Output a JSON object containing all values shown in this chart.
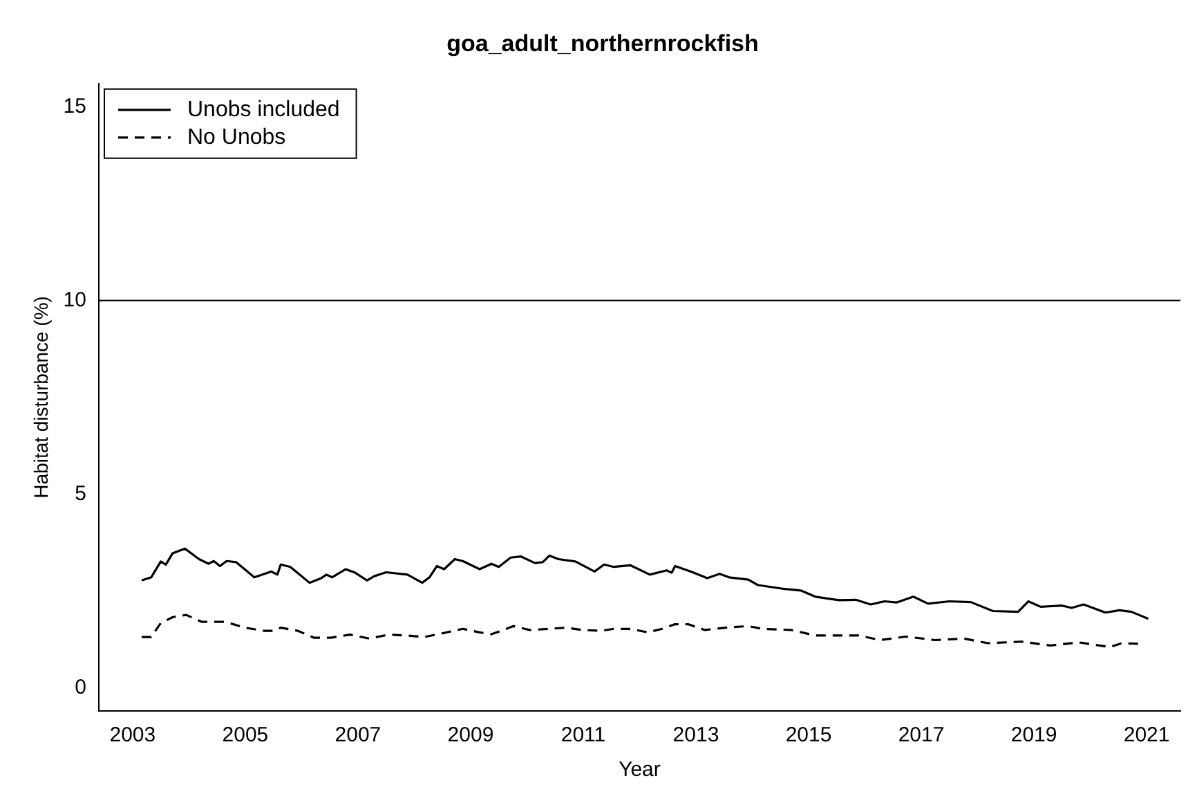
{
  "chart_data": {
    "type": "line",
    "title": "goa_adult_northernrockfish",
    "xlabel": "Year",
    "ylabel": "Habitat disturbance (%)",
    "xlim": [
      2002.4,
      2021.6
    ],
    "xticks": [
      2003,
      2005,
      2007,
      2009,
      2011,
      2013,
      2015,
      2017,
      2019,
      2021
    ],
    "ylim": [
      -0.6,
      15.6
    ],
    "yticks": [
      0,
      5,
      10,
      15
    ],
    "ref_lines": [
      {
        "axis": "y",
        "value": 10,
        "color": "#000000"
      }
    ],
    "legend": "top left",
    "marker": "none",
    "grid": false,
    "series": [
      {
        "name": "Unobs included",
        "color": "#000000",
        "line_style": "solid",
        "x": [
          2003.16,
          2003.33,
          2003.5,
          2003.59,
          2003.71,
          2003.93,
          2004.18,
          2004.35,
          2004.44,
          2004.55,
          2004.67,
          2004.84,
          2005.16,
          2005.46,
          2005.57,
          2005.63,
          2005.8,
          2006.14,
          2006.35,
          2006.44,
          2006.54,
          2006.78,
          2006.95,
          2007.16,
          2007.29,
          2007.5,
          2007.88,
          2008.14,
          2008.27,
          2008.4,
          2008.53,
          2008.72,
          2008.86,
          2009.16,
          2009.37,
          2009.5,
          2009.71,
          2009.89,
          2010.14,
          2010.28,
          2010.4,
          2010.56,
          2010.86,
          2011.2,
          2011.37,
          2011.54,
          2011.84,
          2012.18,
          2012.48,
          2012.57,
          2012.63,
          2012.91,
          2013.2,
          2013.42,
          2013.59,
          2013.93,
          2014.1,
          2014.52,
          2014.86,
          2015.12,
          2015.54,
          2015.84,
          2016.1,
          2016.35,
          2016.56,
          2016.86,
          2017.12,
          2017.5,
          2017.88,
          2018.27,
          2018.72,
          2018.9,
          2019.12,
          2019.5,
          2019.67,
          2019.88,
          2020.27,
          2020.52,
          2020.73,
          2021.03
        ],
        "values": [
          2.77,
          2.85,
          3.26,
          3.18,
          3.47,
          3.59,
          3.32,
          3.2,
          3.27,
          3.14,
          3.27,
          3.24,
          2.85,
          3.0,
          2.92,
          3.18,
          3.12,
          2.71,
          2.83,
          2.92,
          2.85,
          3.06,
          2.97,
          2.77,
          2.88,
          2.98,
          2.92,
          2.71,
          2.85,
          3.14,
          3.06,
          3.32,
          3.27,
          3.06,
          3.2,
          3.12,
          3.36,
          3.39,
          3.22,
          3.24,
          3.41,
          3.32,
          3.26,
          3.0,
          3.18,
          3.12,
          3.16,
          2.92,
          3.03,
          2.97,
          3.14,
          3.0,
          2.83,
          2.94,
          2.85,
          2.79,
          2.65,
          2.56,
          2.51,
          2.35,
          2.26,
          2.27,
          2.15,
          2.23,
          2.2,
          2.35,
          2.17,
          2.23,
          2.21,
          1.98,
          1.96,
          2.23,
          2.09,
          2.12,
          2.06,
          2.15,
          1.94,
          2.0,
          1.96,
          1.78
        ]
      },
      {
        "name": "No Unobs",
        "color": "#000000",
        "line_style": "dashed",
        "x": [
          2003.16,
          2003.33,
          2003.5,
          2003.71,
          2003.95,
          2004.23,
          2004.44,
          2004.65,
          2004.99,
          2005.33,
          2005.5,
          2005.63,
          2005.93,
          2006.22,
          2006.52,
          2006.86,
          2007.2,
          2007.54,
          2007.84,
          2008.18,
          2008.52,
          2008.86,
          2009.16,
          2009.37,
          2009.54,
          2009.76,
          2010.05,
          2010.4,
          2010.69,
          2010.99,
          2011.33,
          2011.54,
          2011.84,
          2012.14,
          2012.4,
          2012.63,
          2012.86,
          2013.16,
          2013.59,
          2013.93,
          2014.18,
          2014.69,
          2015.12,
          2015.63,
          2015.89,
          2016.27,
          2016.73,
          2017.25,
          2017.76,
          2018.18,
          2018.78,
          2019.29,
          2019.8,
          2020.35,
          2020.56,
          2020.9
        ],
        "values": [
          1.31,
          1.31,
          1.67,
          1.82,
          1.88,
          1.7,
          1.7,
          1.7,
          1.55,
          1.47,
          1.47,
          1.55,
          1.47,
          1.29,
          1.29,
          1.37,
          1.27,
          1.37,
          1.35,
          1.31,
          1.41,
          1.52,
          1.43,
          1.38,
          1.47,
          1.59,
          1.49,
          1.52,
          1.55,
          1.49,
          1.47,
          1.52,
          1.52,
          1.43,
          1.52,
          1.64,
          1.64,
          1.49,
          1.56,
          1.59,
          1.52,
          1.49,
          1.35,
          1.35,
          1.35,
          1.23,
          1.32,
          1.23,
          1.27,
          1.15,
          1.19,
          1.09,
          1.17,
          1.05,
          1.15,
          1.13
        ]
      }
    ]
  }
}
